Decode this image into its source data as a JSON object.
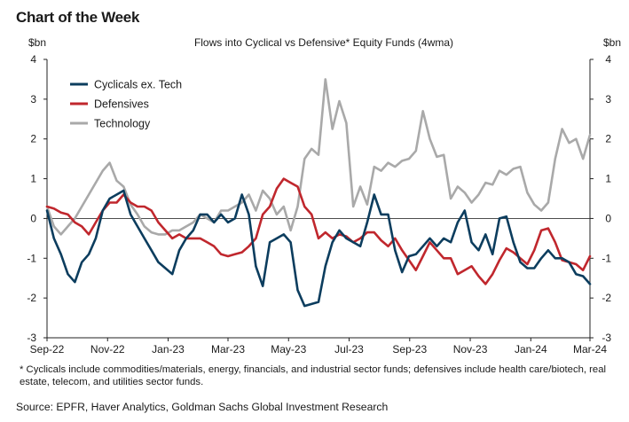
{
  "header": "Chart of the Week",
  "footnote": "* Cyclicals include commodities/materials, energy, financials, and industrial sector funds; defensives include health care/biotech, real estate, telecom, and utilities sector funds.",
  "source": "Source: EPFR, Haver Analytics, Goldman Sachs Global Investment Research",
  "chart_data": {
    "type": "line",
    "title": "Flows into Cyclical vs Defensive*  Equity Funds (4wma)",
    "ylabel_left": "$bn",
    "ylabel_right": "$bn",
    "ylim": [
      -3,
      4
    ],
    "yticks": [
      -3,
      -2,
      -1,
      0,
      1,
      2,
      3,
      4
    ],
    "xlim": [
      0,
      78
    ],
    "xticks": [
      {
        "label": "Sep-22",
        "x": 0
      },
      {
        "label": "Nov-22",
        "x": 8.7
      },
      {
        "label": "Jan-23",
        "x": 17.4
      },
      {
        "label": "Mar-23",
        "x": 26
      },
      {
        "label": "May-23",
        "x": 34.7
      },
      {
        "label": "Jul-23",
        "x": 43.4
      },
      {
        "label": "Sep-23",
        "x": 52.1
      },
      {
        "label": "Nov-23",
        "x": 60.8
      },
      {
        "label": "Jan-24",
        "x": 69.5
      },
      {
        "label": "Mar-24",
        "x": 78
      }
    ],
    "grid": false,
    "legend_position": "top-left",
    "colors": {
      "cyclicals": "#0c3d5e",
      "defensives": "#c0272d",
      "technology": "#a9a9a9"
    },
    "series": [
      {
        "name": "Cyclicals ex. Tech",
        "key": "cyclicals",
        "values": [
          0.2,
          -0.5,
          -0.9,
          -1.4,
          -1.6,
          -1.1,
          -0.9,
          -0.5,
          0.2,
          0.5,
          0.6,
          0.7,
          0.1,
          -0.2,
          -0.5,
          -0.8,
          -1.1,
          -1.25,
          -1.4,
          -0.8,
          -0.5,
          -0.3,
          0.1,
          0.1,
          -0.1,
          0.1,
          -0.1,
          0.0,
          0.6,
          0.1,
          -1.2,
          -1.7,
          -0.6,
          -0.5,
          -0.4,
          -0.6,
          -1.8,
          -2.2,
          -2.15,
          -2.1,
          -1.2,
          -0.6,
          -0.3,
          -0.5,
          -0.6,
          -0.7,
          -0.1,
          0.6,
          0.1,
          0.1,
          -0.8,
          -1.35,
          -0.95,
          -0.9,
          -0.7,
          -0.5,
          -0.7,
          -0.5,
          -0.6,
          -0.1,
          0.2,
          -0.6,
          -0.8,
          -0.4,
          -0.9,
          0.0,
          0.05,
          -0.6,
          -1.1,
          -1.25,
          -1.25,
          -1.0,
          -0.8,
          -1.0,
          -1.0,
          -1.1,
          -1.4,
          -1.45,
          -1.65
        ]
      },
      {
        "name": "Defensives",
        "key": "defensives",
        "values": [
          0.3,
          0.25,
          0.15,
          0.1,
          -0.1,
          -0.2,
          -0.4,
          -0.1,
          0.2,
          0.4,
          0.4,
          0.6,
          0.4,
          0.3,
          0.3,
          0.2,
          -0.1,
          -0.3,
          -0.5,
          -0.4,
          -0.5,
          -0.5,
          -0.5,
          -0.6,
          -0.7,
          -0.9,
          -0.95,
          -0.9,
          -0.85,
          -0.7,
          -0.5,
          0.1,
          0.3,
          0.75,
          1.0,
          0.9,
          0.8,
          0.3,
          0.1,
          -0.5,
          -0.35,
          -0.5,
          -0.4,
          -0.45,
          -0.6,
          -0.5,
          -0.35,
          -0.35,
          -0.55,
          -0.7,
          -0.5,
          -0.8,
          -1.05,
          -1.3,
          -0.95,
          -0.6,
          -0.8,
          -1.0,
          -1.0,
          -1.4,
          -1.3,
          -1.2,
          -1.45,
          -1.65,
          -1.4,
          -1.05,
          -0.75,
          -0.85,
          -1.0,
          -1.15,
          -0.8,
          -0.3,
          -0.25,
          -0.6,
          -1.05,
          -1.1,
          -1.15,
          -1.3,
          -0.95
        ]
      },
      {
        "name": "Technology",
        "key": "technology",
        "values": [
          0.3,
          -0.2,
          -0.4,
          -0.2,
          0.0,
          0.3,
          0.6,
          0.9,
          1.2,
          1.4,
          0.95,
          0.8,
          0.35,
          0.1,
          -0.2,
          -0.35,
          -0.4,
          -0.4,
          -0.3,
          -0.3,
          -0.2,
          -0.1,
          0.1,
          0.0,
          -0.1,
          0.2,
          0.2,
          0.3,
          0.4,
          0.6,
          0.2,
          0.7,
          0.5,
          0.1,
          0.3,
          -0.3,
          0.3,
          1.5,
          1.75,
          1.6,
          3.5,
          2.25,
          2.95,
          2.4,
          0.3,
          0.8,
          0.35,
          1.3,
          1.2,
          1.4,
          1.3,
          1.45,
          1.5,
          1.7,
          2.7,
          2.0,
          1.55,
          1.6,
          0.5,
          0.8,
          0.65,
          0.4,
          0.6,
          0.9,
          0.85,
          1.2,
          1.1,
          1.25,
          1.3,
          0.65,
          0.35,
          0.2,
          0.4,
          1.5,
          2.25,
          1.9,
          2.0,
          1.5,
          2.1
        ]
      }
    ]
  }
}
